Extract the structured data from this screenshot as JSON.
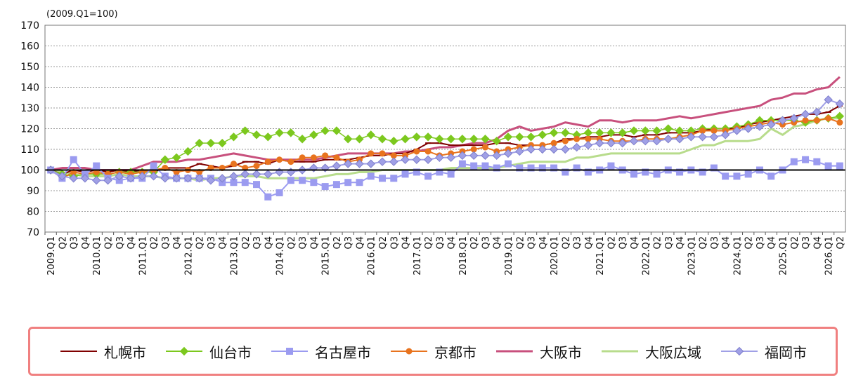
{
  "chart_data": {
    "type": "line",
    "unit_note": "(2009.Q1=100)",
    "ylim": [
      70,
      170
    ],
    "yticks": [
      70,
      80,
      90,
      100,
      110,
      120,
      130,
      140,
      150,
      160,
      170
    ],
    "reference_line": 100,
    "legend_position": "bottom",
    "x": [
      "2009.Q1",
      "Q2",
      "Q3",
      "Q4",
      "2010.Q1",
      "Q2",
      "Q3",
      "Q4",
      "2011.Q1",
      "Q2",
      "Q3",
      "Q4",
      "2012.Q1",
      "Q2",
      "Q3",
      "Q4",
      "2013.Q1",
      "Q2",
      "Q3",
      "Q4",
      "2014.Q1",
      "Q2",
      "Q3",
      "Q4",
      "2015.Q1",
      "Q2",
      "Q3",
      "Q4",
      "2016.Q1",
      "Q2",
      "Q3",
      "Q4",
      "2017.Q1",
      "Q2",
      "Q3",
      "Q4",
      "2018.Q1",
      "Q2",
      "Q3",
      "Q4",
      "2019.Q1",
      "Q2",
      "Q3",
      "Q4",
      "2020.Q1",
      "Q2",
      "Q3",
      "Q4",
      "2021.Q1",
      "Q2",
      "Q3",
      "Q4",
      "2022.Q1",
      "Q2",
      "Q3",
      "Q4",
      "2023.Q1",
      "Q2",
      "Q3",
      "Q4",
      "2024.Q1",
      "Q2",
      "Q3",
      "Q4",
      "2025.Q1",
      "Q2",
      "Q3",
      "Q4",
      "2026.Q1",
      "Q2"
    ],
    "series": [
      {
        "name": "札幌市",
        "color": "#800000",
        "marker": "dash",
        "width": 2,
        "values": [
          100,
          98,
          100,
          99,
          100,
          99,
          100,
          99,
          100,
          99,
          101,
          101,
          101,
          103,
          102,
          101,
          102,
          104,
          104,
          103,
          105,
          104,
          104,
          104,
          105,
          105,
          105,
          106,
          107,
          107,
          108,
          108,
          110,
          113,
          113,
          112,
          112,
          112,
          112,
          113,
          113,
          112,
          112,
          112,
          113,
          115,
          115,
          116,
          116,
          117,
          117,
          116,
          117,
          117,
          118,
          118,
          118,
          119,
          120,
          120,
          120,
          122,
          123,
          124,
          125,
          126,
          127,
          127,
          128,
          131
        ]
      },
      {
        "name": "仙台市",
        "color": "#7cc81e",
        "marker": "diamond",
        "width": 1.5,
        "values": [
          100,
          98,
          97,
          98,
          98,
          98,
          99,
          99,
          99,
          99,
          105,
          106,
          109,
          113,
          113,
          113,
          116,
          119,
          117,
          116,
          118,
          118,
          115,
          117,
          119,
          119,
          115,
          115,
          117,
          115,
          114,
          115,
          116,
          116,
          115,
          115,
          115,
          115,
          115,
          114,
          116,
          116,
          116,
          117,
          118,
          118,
          117,
          118,
          118,
          118,
          118,
          119,
          119,
          119,
          120,
          119,
          119,
          120,
          120,
          120,
          121,
          122,
          124,
          124,
          124,
          124,
          123,
          124,
          125,
          126
        ]
      },
      {
        "name": "名古屋市",
        "color": "#9b9bf0",
        "marker": "square",
        "width": 2,
        "values": [
          100,
          96,
          105,
          98,
          102,
          96,
          95,
          96,
          96,
          102,
          97,
          96,
          96,
          96,
          96,
          94,
          94,
          94,
          93,
          87,
          89,
          95,
          95,
          94,
          92,
          93,
          94,
          94,
          97,
          96,
          96,
          98,
          99,
          97,
          99,
          98,
          103,
          102,
          102,
          101,
          103,
          101,
          101,
          101,
          101,
          99,
          101,
          99,
          100,
          102,
          100,
          98,
          99,
          98,
          100,
          99,
          100,
          99,
          101,
          97,
          97,
          98,
          100,
          97,
          100,
          104,
          105,
          104,
          102,
          102
        ]
      },
      {
        "name": "京都市",
        "color": "#e8731e",
        "marker": "circle",
        "width": 2,
        "values": [
          100,
          96,
          99,
          98,
          99,
          98,
          99,
          98,
          99,
          100,
          101,
          99,
          100,
          99,
          101,
          101,
          103,
          101,
          102,
          104,
          105,
          104,
          106,
          106,
          107,
          106,
          104,
          105,
          108,
          108,
          107,
          107,
          109,
          109,
          107,
          108,
          109,
          110,
          111,
          109,
          110,
          111,
          112,
          112,
          113,
          114,
          115,
          115,
          115,
          114,
          114,
          114,
          115,
          115,
          115,
          116,
          117,
          119,
          119,
          119,
          120,
          121,
          122,
          123,
          122,
          123,
          124,
          124,
          125,
          123
        ]
      },
      {
        "name": "大阪市",
        "color": "#c8507d",
        "marker": "none",
        "width": 3,
        "values": [
          100,
          101,
          101,
          101,
          100,
          100,
          100,
          100,
          102,
          104,
          104,
          104,
          105,
          105,
          106,
          107,
          108,
          107,
          106,
          105,
          105,
          105,
          105,
          105,
          106,
          107,
          108,
          108,
          108,
          108,
          108,
          109,
          109,
          110,
          111,
          111,
          112,
          113,
          113,
          115,
          119,
          121,
          119,
          120,
          121,
          123,
          122,
          121,
          124,
          124,
          123,
          124,
          124,
          124,
          125,
          126,
          125,
          126,
          127,
          128,
          129,
          130,
          131,
          134,
          135,
          137,
          137,
          139,
          140,
          145
        ]
      },
      {
        "name": "大阪広域",
        "color": "#b8dc8c",
        "marker": "none",
        "width": 3,
        "values": [
          100,
          99,
          98,
          97,
          97,
          97,
          98,
          97,
          97,
          97,
          96,
          96,
          96,
          95,
          96,
          96,
          97,
          97,
          97,
          96,
          96,
          96,
          96,
          96,
          97,
          98,
          98,
          99,
          99,
          100,
          100,
          100,
          100,
          100,
          100,
          101,
          101,
          101,
          101,
          101,
          102,
          103,
          104,
          104,
          104,
          104,
          106,
          106,
          107,
          108,
          108,
          108,
          108,
          108,
          108,
          108,
          110,
          112,
          112,
          114,
          114,
          114,
          115,
          120,
          117,
          121,
          122,
          124,
          125,
          125
        ]
      },
      {
        "name": "福岡市",
        "color": "#a0a0e6",
        "marker": "diamond",
        "width": 2,
        "values": [
          100,
          97,
          96,
          96,
          95,
          95,
          97,
          96,
          97,
          97,
          96,
          96,
          96,
          96,
          95,
          96,
          97,
          98,
          98,
          98,
          99,
          99,
          100,
          101,
          101,
          102,
          103,
          103,
          103,
          104,
          104,
          105,
          105,
          105,
          106,
          106,
          107,
          107,
          107,
          107,
          108,
          109,
          110,
          110,
          110,
          110,
          111,
          112,
          113,
          113,
          113,
          114,
          114,
          114,
          115,
          115,
          116,
          116,
          116,
          117,
          119,
          120,
          121,
          122,
          124,
          125,
          127,
          128,
          134,
          132
        ]
      }
    ]
  }
}
